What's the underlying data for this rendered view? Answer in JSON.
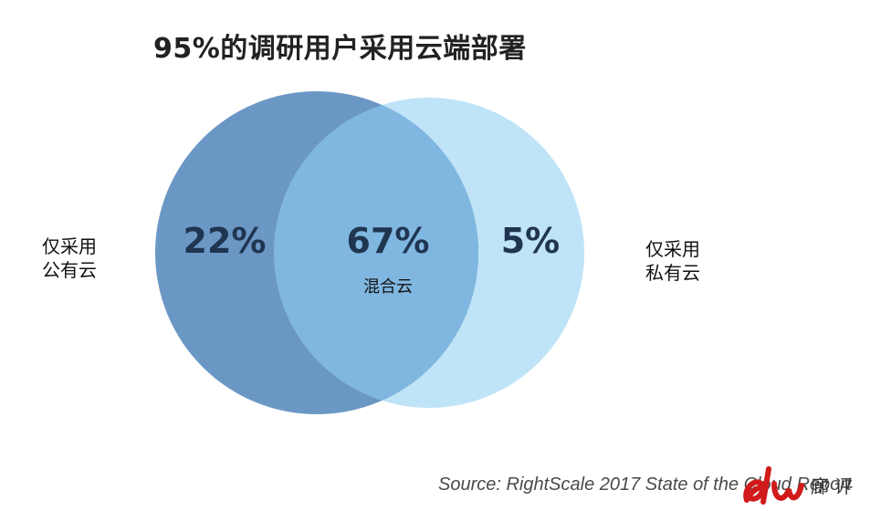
{
  "title": "95%的调研用户采用云端部署",
  "venn": {
    "sets": [
      {
        "label_line1": "仅采用",
        "label_line2": "公有云",
        "color": "#6b97c5"
      },
      {
        "label_line1": "仅采用",
        "label_line2": "私有云",
        "color": "#bfe3f7"
      }
    ],
    "overlap_color": "#80b7e0",
    "regions": [
      {
        "value": "22%"
      },
      {
        "value": "67%",
        "label": "混合云"
      },
      {
        "value": "5%"
      }
    ]
  },
  "source": "Source: RightScale 2017 State of the Cloud Report",
  "logo": {
    "icon": "brand-logo-icon",
    "text": "廊 评"
  }
}
